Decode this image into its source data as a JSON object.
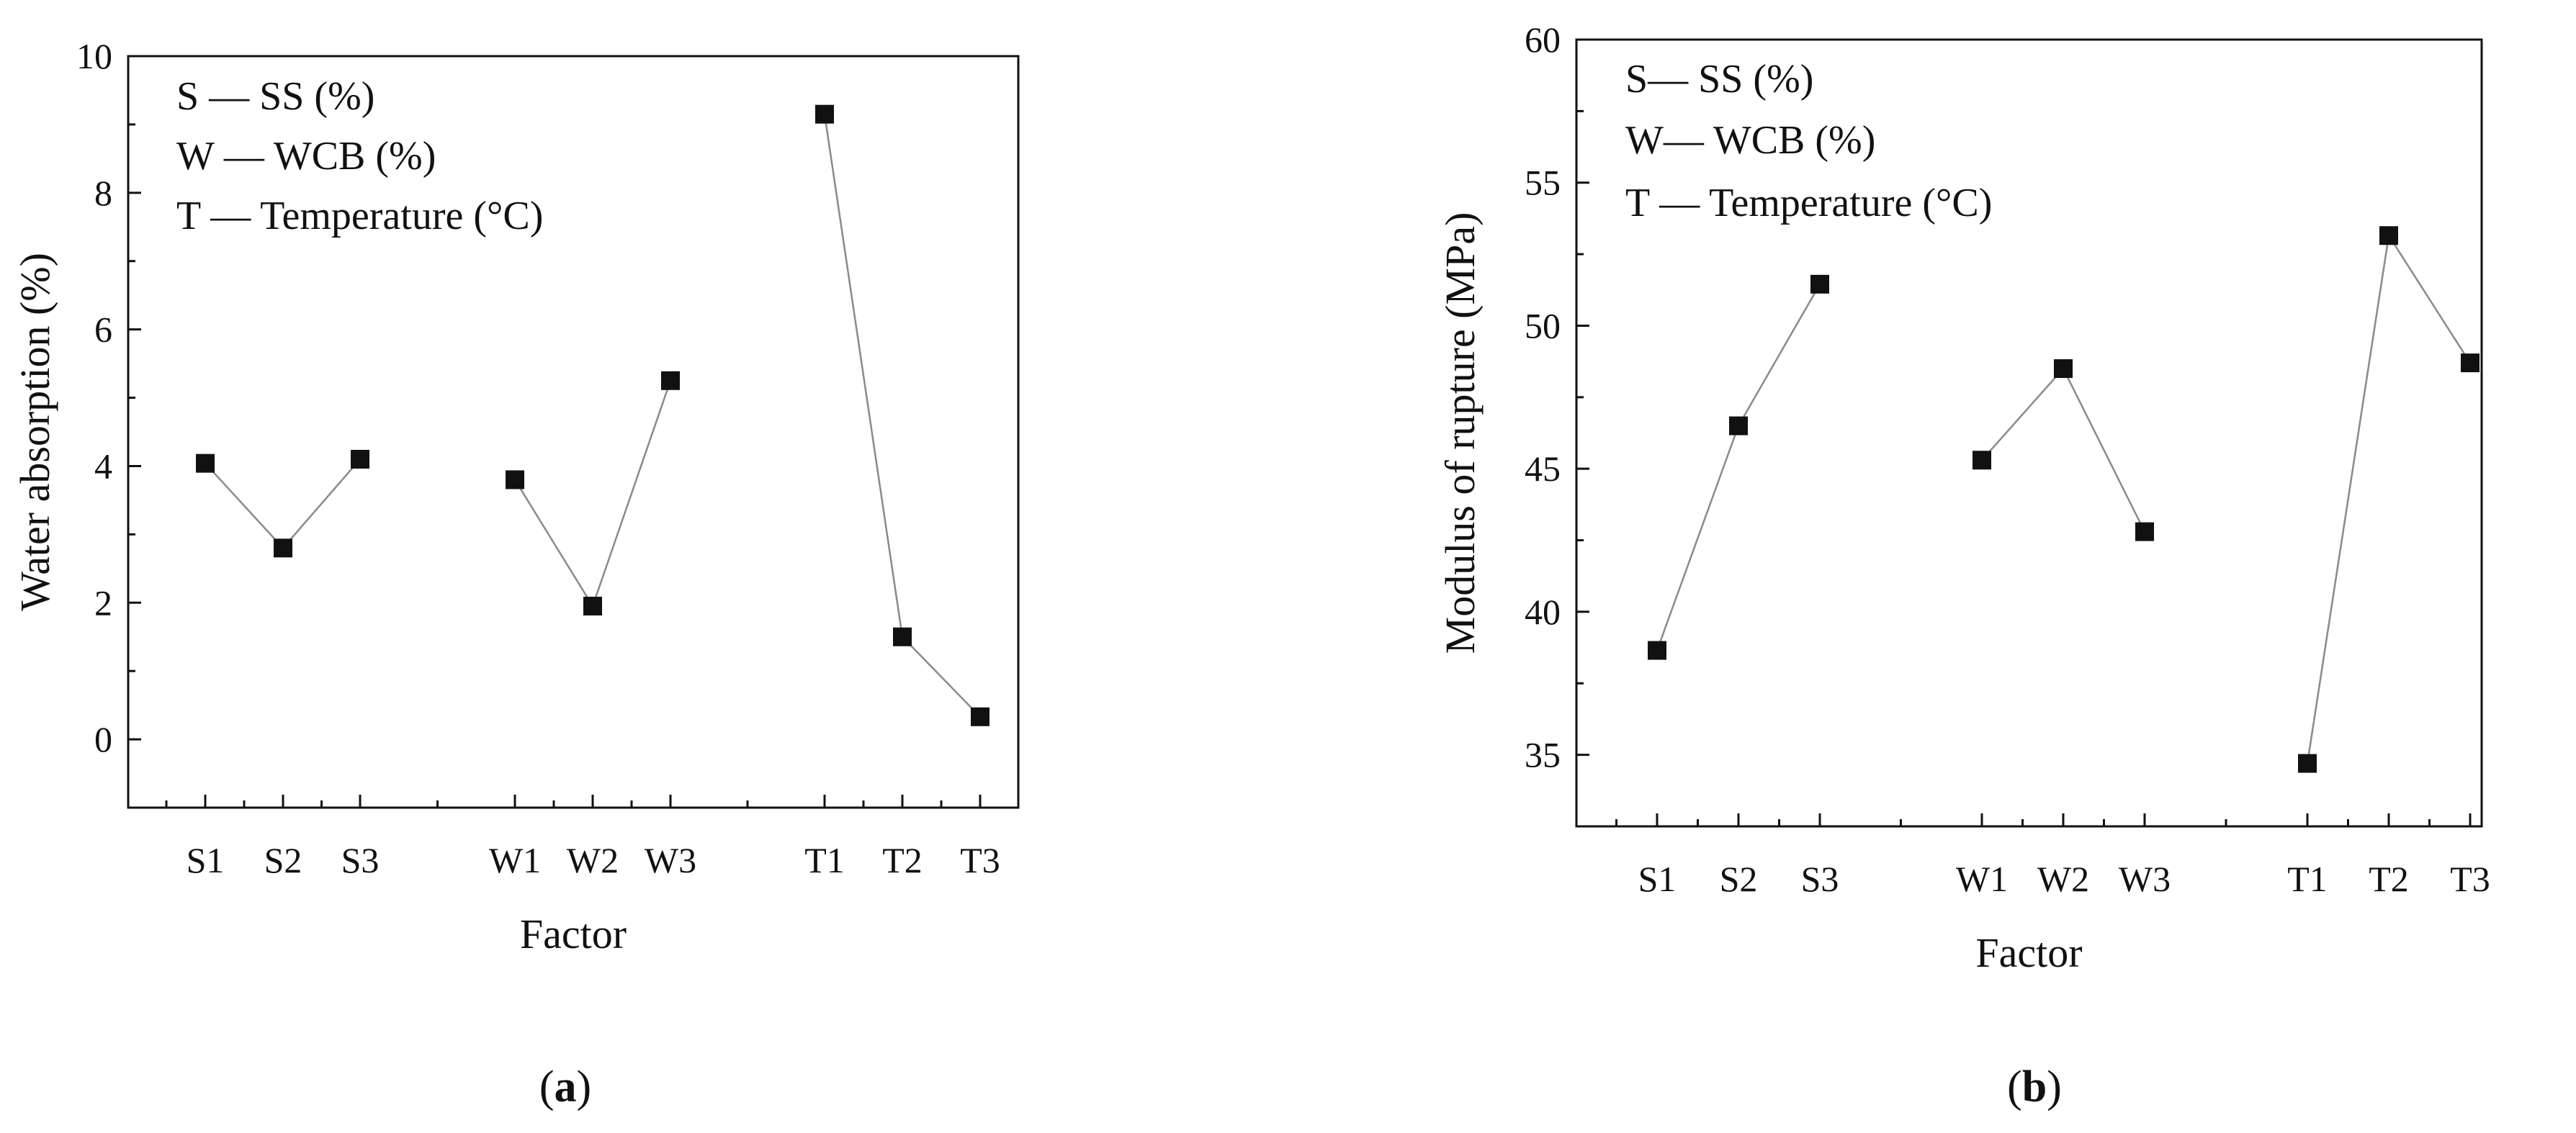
{
  "chart_data": [
    {
      "type": "line",
      "panel_label": "a",
      "xlabel": "Factor",
      "ylabel": "Water absorption (%)",
      "ylim": [
        -1,
        10
      ],
      "yticks": [
        0,
        2,
        4,
        6,
        8,
        10
      ],
      "categories": [
        "S1",
        "S2",
        "S3",
        "W1",
        "W2",
        "W3",
        "T1",
        "T2",
        "T3"
      ],
      "legend": [
        "S — SS (%)",
        "W — WCB (%)",
        "T — Temperature (°C)"
      ],
      "legend_position": "top-left",
      "marker": "square",
      "series": [
        {
          "name": "S",
          "x": [
            "S1",
            "S2",
            "S3"
          ],
          "values": [
            4.04,
            2.8,
            4.1
          ]
        },
        {
          "name": "W",
          "x": [
            "W1",
            "W2",
            "W3"
          ],
          "values": [
            3.8,
            1.95,
            5.25
          ]
        },
        {
          "name": "T",
          "x": [
            "T1",
            "T2",
            "T3"
          ],
          "values": [
            9.15,
            1.5,
            0.33
          ]
        }
      ]
    },
    {
      "type": "line",
      "panel_label": "b",
      "xlabel": "Factor",
      "ylabel": "Modulus of rupture (MPa)",
      "ylim": [
        32.5,
        60
      ],
      "yticks": [
        35,
        40,
        45,
        50,
        55,
        60
      ],
      "categories": [
        "S1",
        "S2",
        "S3",
        "W1",
        "W2",
        "W3",
        "T1",
        "T2",
        "T3"
      ],
      "legend": [
        "S— SS (%)",
        "W— WCB (%)",
        "T — Temperature (°C)"
      ],
      "legend_position": "top-left",
      "marker": "square",
      "series": [
        {
          "name": "S",
          "x": [
            "S1",
            "S2",
            "S3"
          ],
          "values": [
            38.65,
            46.5,
            51.45
          ]
        },
        {
          "name": "W",
          "x": [
            "W1",
            "W2",
            "W3"
          ],
          "values": [
            45.3,
            48.5,
            42.8
          ]
        },
        {
          "name": "T",
          "x": [
            "T1",
            "T2",
            "T3"
          ],
          "values": [
            34.7,
            53.15,
            48.7
          ]
        }
      ]
    }
  ]
}
